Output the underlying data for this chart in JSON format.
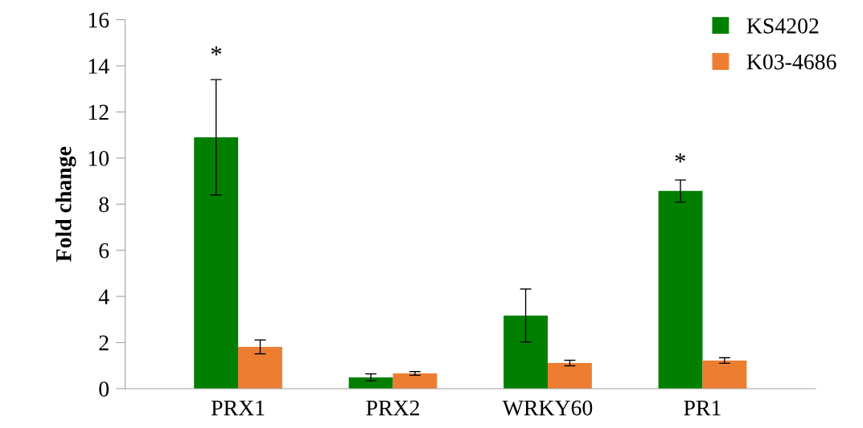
{
  "chart_data": {
    "type": "bar",
    "ylabel": "Fold change",
    "categories": [
      "PRX1",
      "PRX2",
      "WRKY60",
      "PR1"
    ],
    "series": [
      {
        "name": "KS4202",
        "color": "#007f00",
        "values": [
          10.9,
          0.49,
          3.17,
          8.57
        ],
        "errors": [
          2.5,
          0.15,
          1.15,
          0.48
        ]
      },
      {
        "name": "K03-4686",
        "color": "#ed7d31",
        "values": [
          1.81,
          0.66,
          1.11,
          1.22
        ],
        "errors": [
          0.3,
          0.08,
          0.12,
          0.12
        ]
      }
    ],
    "annotations": [
      "*",
      "*"
    ],
    "ylim": [
      0,
      16
    ],
    "yticks": [
      0,
      2,
      4,
      6,
      8,
      10,
      12,
      14,
      16
    ],
    "grid": false,
    "legend": "top right"
  }
}
